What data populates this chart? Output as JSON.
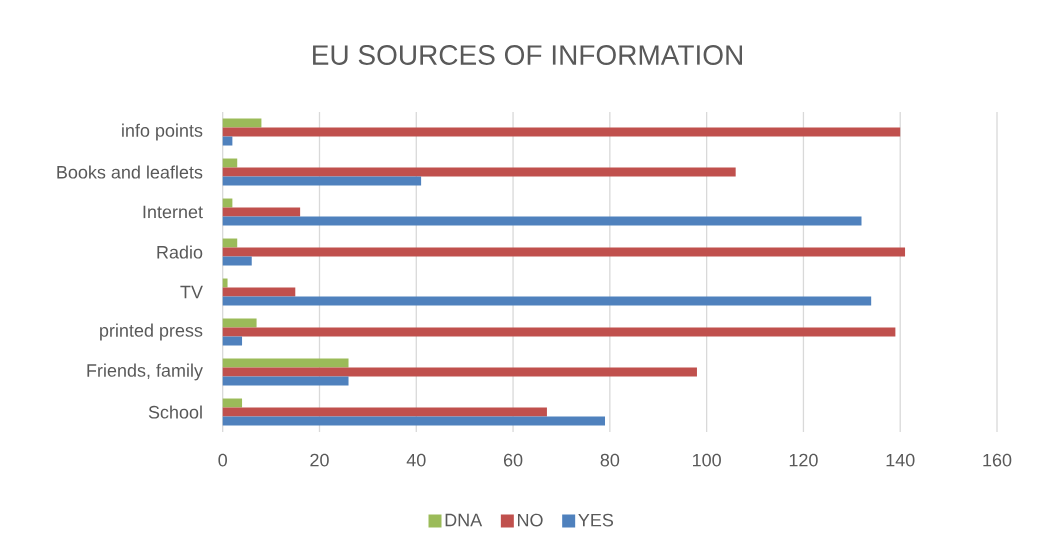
{
  "chart_data": {
    "type": "bar",
    "orientation": "horizontal",
    "title": "EU SOURCES OF INFORMATION",
    "categories": [
      "info points",
      "Books and leaflets",
      "Internet",
      "Radio",
      "TV",
      "printed press",
      "Friends, family",
      "School"
    ],
    "series": [
      {
        "name": "DNA",
        "color": "#9bbb59",
        "values": [
          8,
          3,
          2,
          3,
          1,
          7,
          26,
          4
        ]
      },
      {
        "name": "NO",
        "color": "#c0504d",
        "values": [
          140,
          106,
          16,
          141,
          15,
          139,
          98,
          67
        ]
      },
      {
        "name": "YES",
        "color": "#4f81bd",
        "values": [
          2,
          41,
          132,
          6,
          134,
          4,
          26,
          79
        ]
      }
    ],
    "xlim": [
      0,
      160
    ],
    "xticks": [
      0,
      20,
      40,
      60,
      80,
      100,
      120,
      140,
      160
    ],
    "grid": "x",
    "legend": "bottom"
  }
}
